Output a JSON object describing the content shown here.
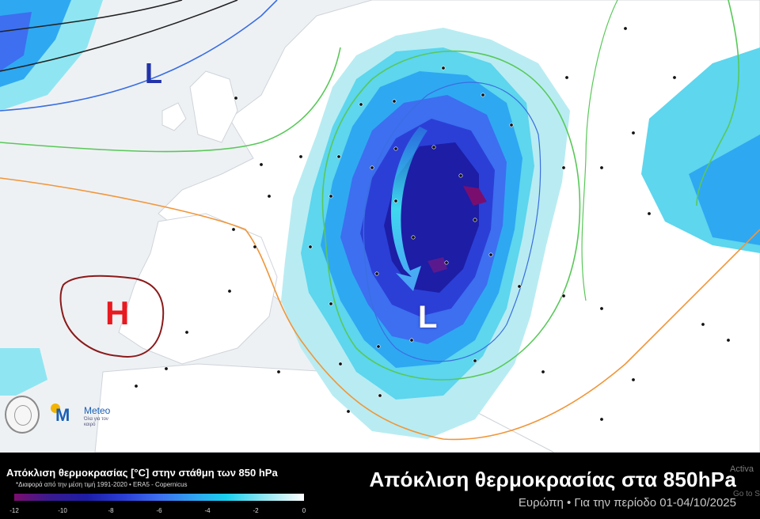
{
  "map": {
    "pressure_labels": {
      "north_atlantic_low": "L",
      "iberia_high": "H",
      "aegean_low": "L"
    },
    "colors": {
      "low_label": "#2233aa",
      "high_label": "#e8191f",
      "anomaly_core": "#1d1da6",
      "anomaly_edge": "#19d0ee"
    }
  },
  "logos": {
    "meteo_name": "Meteo",
    "meteo_tagline": "Όλα για τον καιρό"
  },
  "legend": {
    "title": "Απόκλιση θερμοκρασίας [°C] στην στάθμη των 850 hPa",
    "subtitle": "*Διαφορά από την μέση τιμή 1991-2020 • ERA5 - Copernicus",
    "ticks": [
      "-12",
      "-10",
      "-8",
      "-6",
      "-4",
      "-2",
      "0"
    ]
  },
  "header": {
    "title": "Απόκλιση θερμοκρασίας στα 850hPa",
    "subtitle": "Ευρώπη • Για την περίοδο 01-04/10/2025"
  },
  "overlay": {
    "activate_text": "Activa",
    "goto_text": "Go to S"
  }
}
